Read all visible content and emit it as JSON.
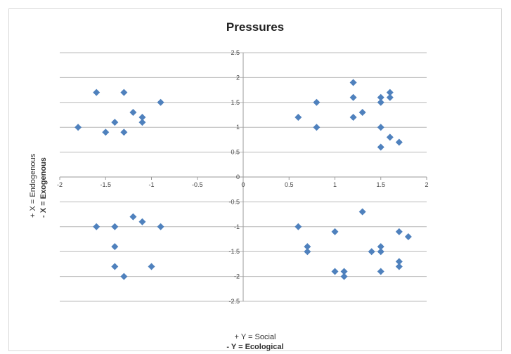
{
  "chart_data": {
    "type": "scatter",
    "title": "Pressures",
    "xlim": [
      -2,
      2
    ],
    "ylim": [
      -2.5,
      2.5
    ],
    "x_ticks": [
      "-2",
      "-1.5",
      "-1",
      "-0.5",
      "0",
      "0.5",
      "1",
      "1.5",
      "2"
    ],
    "y_ticks": [
      "2.5",
      "2",
      "1.5",
      "1",
      "0.5",
      "0",
      "-0.5",
      "-1",
      "-1.5",
      "-2",
      "-2.5"
    ],
    "grid": "horizontal",
    "legend": "none",
    "marker_color": "#4f81bd",
    "y_axis_label": {
      "line1": "+ X = Endogenous",
      "line2": "- X = Exogenous"
    },
    "x_axis_label": {
      "line1": "+ Y = Social",
      "line2": "- Y = Ecological"
    },
    "points": [
      {
        "x": -1.6,
        "y": 1.7
      },
      {
        "x": -1.3,
        "y": 1.7
      },
      {
        "x": -0.9,
        "y": 1.5
      },
      {
        "x": -1.2,
        "y": 1.3
      },
      {
        "x": -1.1,
        "y": 1.2
      },
      {
        "x": -1.1,
        "y": 1.1
      },
      {
        "x": -1.4,
        "y": 1.1
      },
      {
        "x": -1.8,
        "y": 1.0
      },
      {
        "x": -1.5,
        "y": 0.9
      },
      {
        "x": -1.3,
        "y": 0.9
      },
      {
        "x": 1.2,
        "y": 1.9
      },
      {
        "x": 1.6,
        "y": 1.7
      },
      {
        "x": 1.2,
        "y": 1.6
      },
      {
        "x": 1.5,
        "y": 1.6
      },
      {
        "x": 1.6,
        "y": 1.6
      },
      {
        "x": 0.8,
        "y": 1.5
      },
      {
        "x": 1.5,
        "y": 1.5
      },
      {
        "x": 1.3,
        "y": 1.3
      },
      {
        "x": 0.6,
        "y": 1.2
      },
      {
        "x": 1.2,
        "y": 1.2
      },
      {
        "x": 0.8,
        "y": 1.0
      },
      {
        "x": 1.5,
        "y": 1.0
      },
      {
        "x": 1.6,
        "y": 0.8
      },
      {
        "x": 1.7,
        "y": 0.7
      },
      {
        "x": 1.5,
        "y": 0.6
      },
      {
        "x": -1.2,
        "y": -0.8
      },
      {
        "x": -1.1,
        "y": -0.9
      },
      {
        "x": -1.6,
        "y": -1.0
      },
      {
        "x": -1.4,
        "y": -1.0
      },
      {
        "x": -0.9,
        "y": -1.0
      },
      {
        "x": -1.4,
        "y": -1.4
      },
      {
        "x": -1.4,
        "y": -1.8
      },
      {
        "x": -1.0,
        "y": -1.8
      },
      {
        "x": -1.3,
        "y": -2.0
      },
      {
        "x": 1.3,
        "y": -0.7
      },
      {
        "x": 0.6,
        "y": -1.0
      },
      {
        "x": 1.0,
        "y": -1.1
      },
      {
        "x": 1.7,
        "y": -1.1
      },
      {
        "x": 1.8,
        "y": -1.2
      },
      {
        "x": 0.7,
        "y": -1.4
      },
      {
        "x": 1.5,
        "y": -1.4
      },
      {
        "x": 0.7,
        "y": -1.5
      },
      {
        "x": 1.4,
        "y": -1.5
      },
      {
        "x": 1.5,
        "y": -1.5
      },
      {
        "x": 1.7,
        "y": -1.7
      },
      {
        "x": 1.7,
        "y": -1.8
      },
      {
        "x": 1.0,
        "y": -1.9
      },
      {
        "x": 1.1,
        "y": -1.9
      },
      {
        "x": 1.5,
        "y": -1.9
      },
      {
        "x": 1.1,
        "y": -2.0
      }
    ]
  }
}
